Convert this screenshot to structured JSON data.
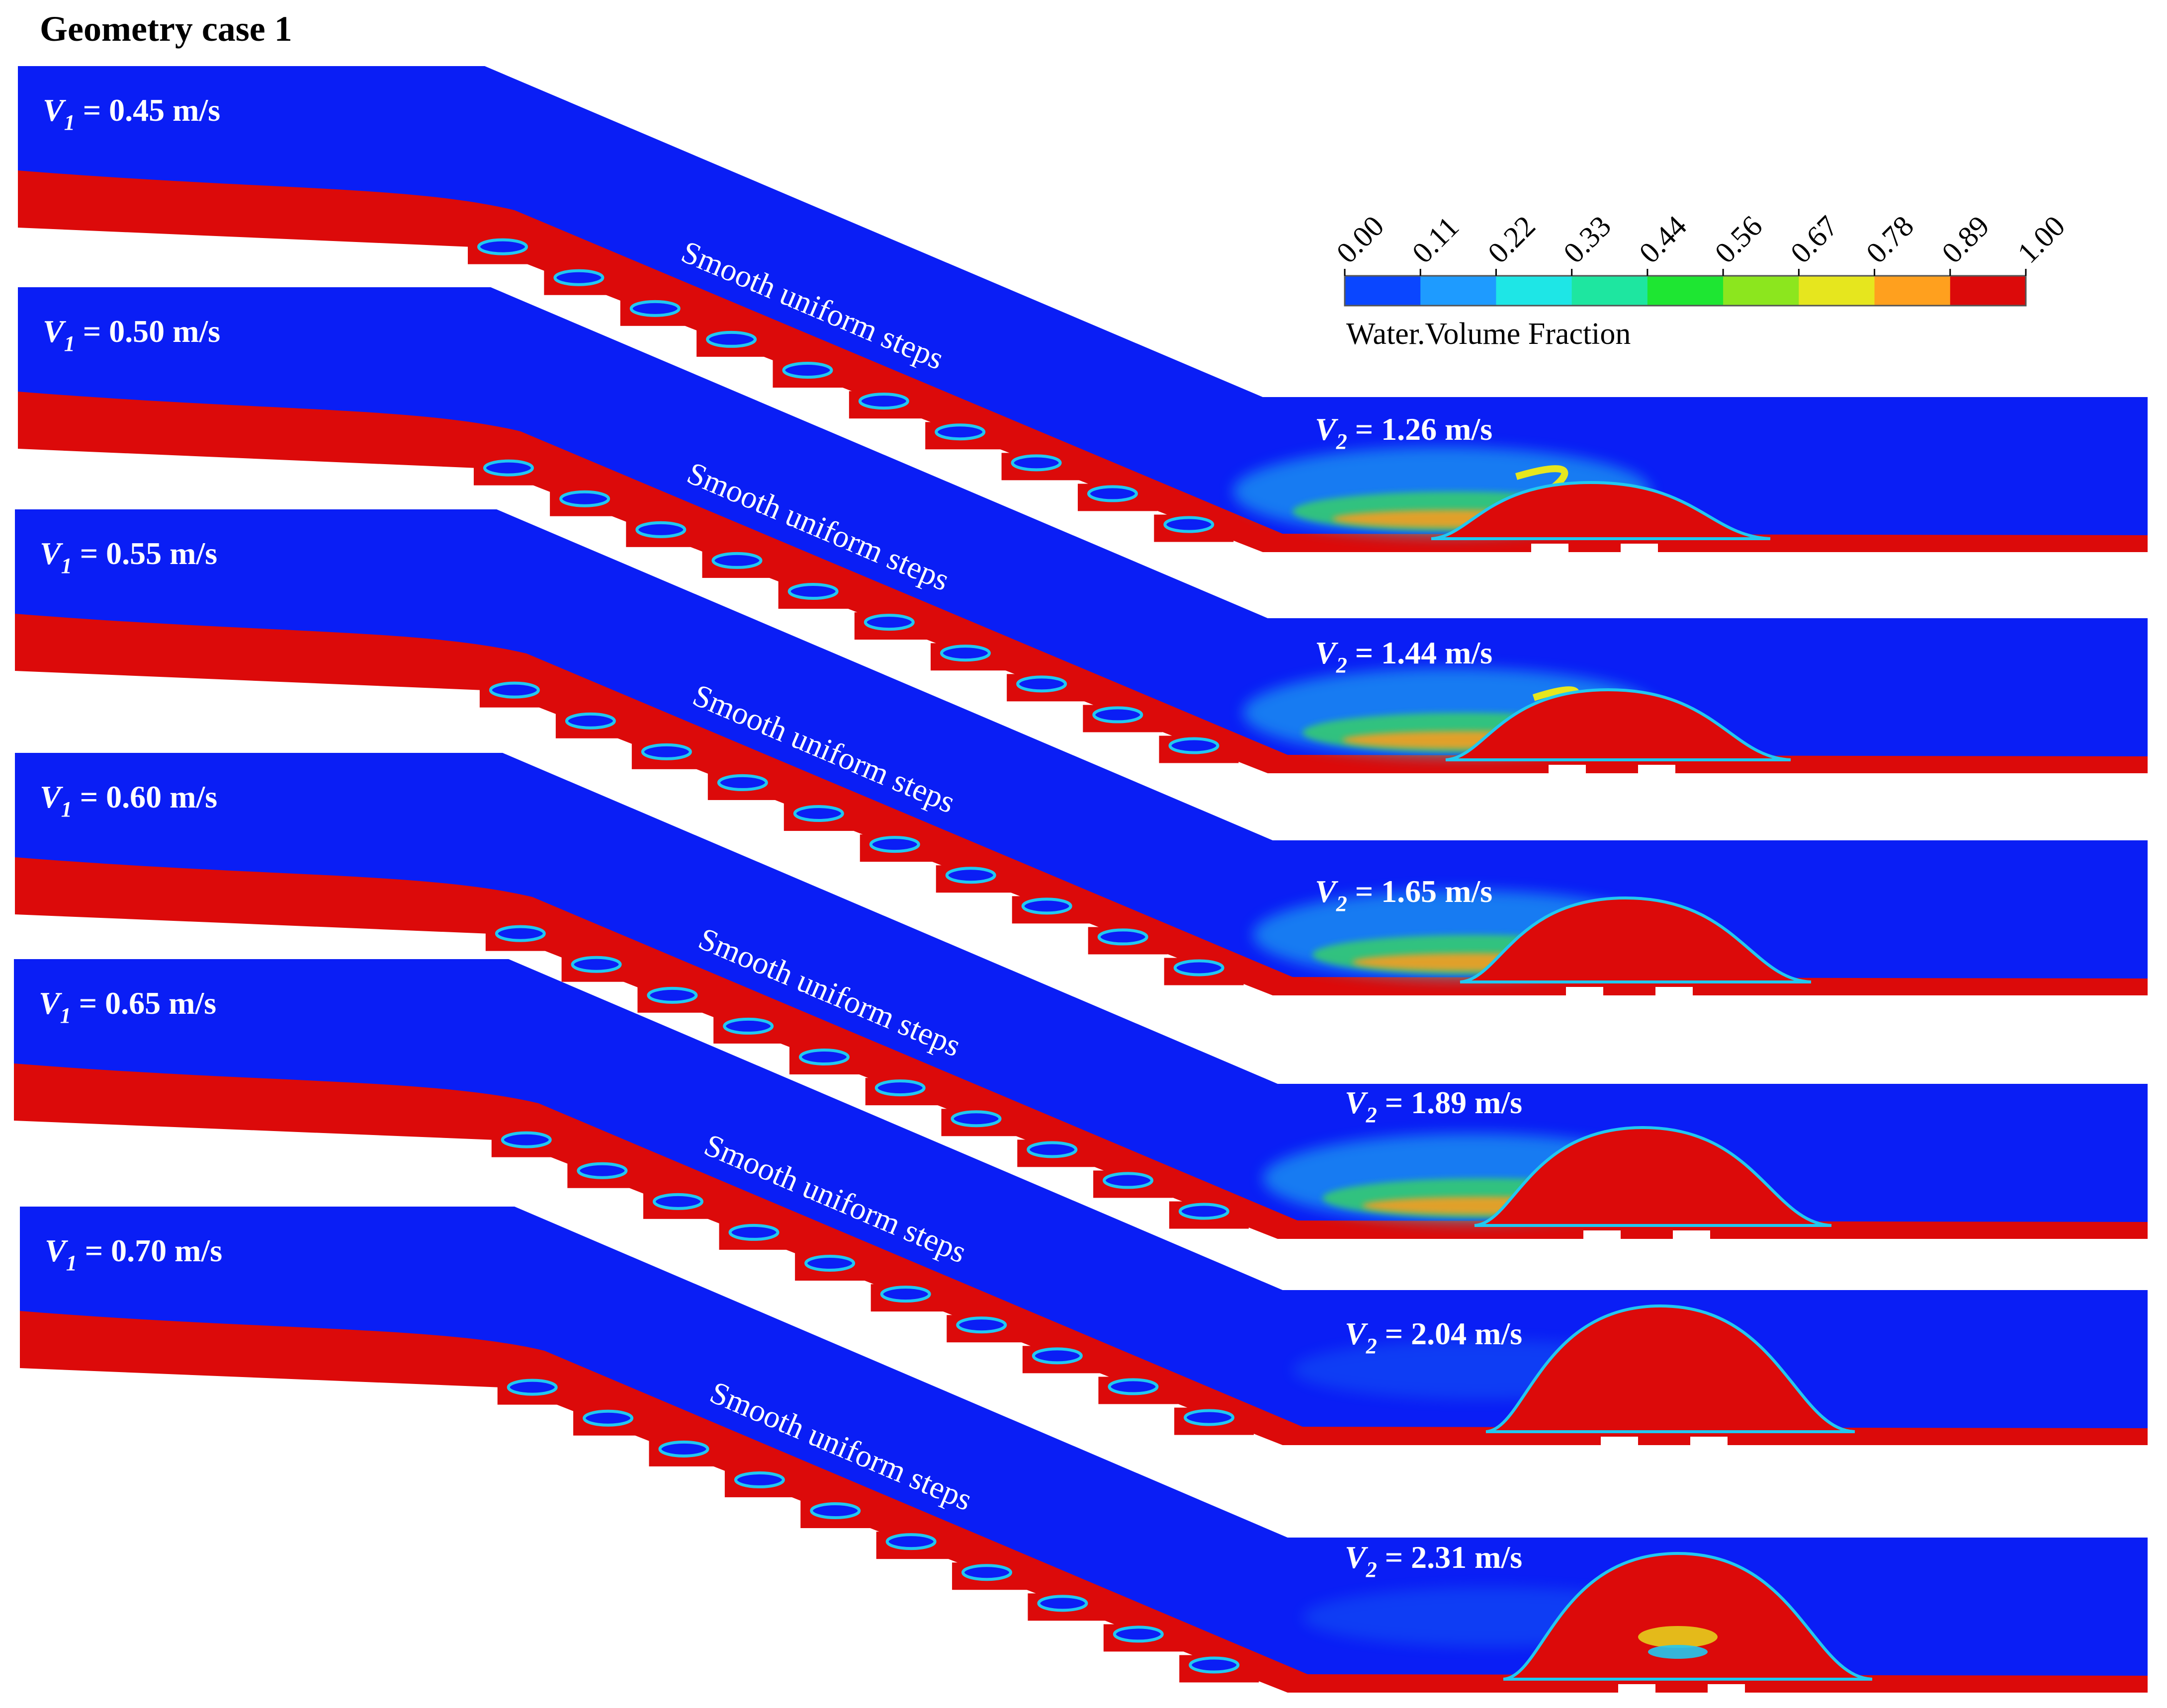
{
  "title": "Geometry case 1",
  "colors": {
    "water_blue": "#0a1ef5",
    "red": "#dc0a0a",
    "foam_cyan": "#22c8f0",
    "foam_green": "#3ce050",
    "foam_yellow": "#e6e61e",
    "foam_orange": "#ff9b1e"
  },
  "colorbar": {
    "title": "Water.Volume Fraction",
    "ticks": [
      "0.00",
      "0.11",
      "0.22",
      "0.33",
      "0.44",
      "0.56",
      "0.67",
      "0.78",
      "0.89",
      "1.00"
    ],
    "colors": [
      "#0a46ff",
      "#1e9bff",
      "#1ee6e6",
      "#1ee6a0",
      "#1ee632",
      "#8ce61e",
      "#e6e61e",
      "#ffa01e",
      "#dc0a0a"
    ]
  },
  "steps_label": "Smooth uniform steps",
  "cases": [
    {
      "v1_label": "V",
      "v1_sub": "1",
      "v1_value": " = 0.45 m/s",
      "v2_label": "V",
      "v2_sub": "2",
      "v2_value": " = 1.26 m/s",
      "jump_type": "foamy",
      "hump_height": 0.35
    },
    {
      "v1_label": "V",
      "v1_sub": "1",
      "v1_value": " = 0.50 m/s",
      "v2_label": "V",
      "v2_sub": "2",
      "v2_value": " = 1.44 m/s",
      "jump_type": "foamy",
      "hump_height": 0.45
    },
    {
      "v1_label": "V",
      "v1_sub": "1",
      "v1_value": " = 0.55 m/s",
      "v2_label": "V",
      "v2_sub": "2",
      "v2_value": " = 1.65 m/s",
      "jump_type": "foamy",
      "hump_height": 0.55
    },
    {
      "v1_label": "V",
      "v1_sub": "1",
      "v1_value": " = 0.60 m/s",
      "v2_label": "V",
      "v2_sub": "2",
      "v2_value": " = 1.89 m/s",
      "jump_type": "foamy",
      "hump_height": 0.65
    },
    {
      "v1_label": "V",
      "v1_sub": "1",
      "v1_value": " = 0.65 m/s",
      "v2_label": "V",
      "v2_sub": "2",
      "v2_value": " = 2.04 m/s",
      "jump_type": "clear",
      "hump_height": 0.85
    },
    {
      "v1_label": "V",
      "v1_sub": "1",
      "v1_value": " = 0.70 m/s",
      "v2_label": "V",
      "v2_sub": "2",
      "v2_value": " = 2.31 m/s",
      "jump_type": "clear",
      "hump_height": 0.85
    }
  ]
}
